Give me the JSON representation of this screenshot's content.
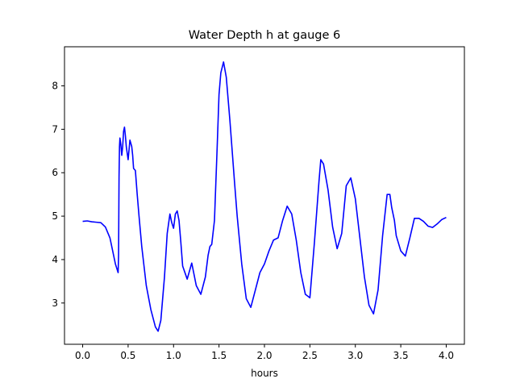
{
  "chart_data": {
    "type": "line",
    "title": "Water Depth h at gauge 6",
    "xlabel": "hours",
    "ylabel": "",
    "xlim": [
      -0.2,
      4.2
    ],
    "ylim": [
      2.05,
      8.9
    ],
    "xticks": [
      0.0,
      0.5,
      1.0,
      1.5,
      2.0,
      2.5,
      3.0,
      3.5,
      4.0
    ],
    "xtick_labels": [
      "0.0",
      "0.5",
      "1.0",
      "1.5",
      "2.0",
      "2.5",
      "3.0",
      "3.5",
      "4.0"
    ],
    "yticks": [
      3,
      4,
      5,
      6,
      7,
      8
    ],
    "ytick_labels": [
      "3",
      "4",
      "5",
      "6",
      "7",
      "8"
    ],
    "grid": false,
    "series": [
      {
        "color": "#0000ff",
        "x": [
          0.0,
          0.05,
          0.1,
          0.15,
          0.2,
          0.25,
          0.3,
          0.33,
          0.36,
          0.39,
          0.395,
          0.4,
          0.405,
          0.41,
          0.42,
          0.43,
          0.44,
          0.45,
          0.46,
          0.47,
          0.48,
          0.49,
          0.5,
          0.52,
          0.54,
          0.55,
          0.56,
          0.58,
          0.6,
          0.62,
          0.65,
          0.7,
          0.75,
          0.8,
          0.83,
          0.86,
          0.9,
          0.93,
          0.96,
          0.98,
          1.0,
          1.02,
          1.04,
          1.06,
          1.08,
          1.1,
          1.15,
          1.2,
          1.25,
          1.3,
          1.35,
          1.38,
          1.4,
          1.42,
          1.45,
          1.48,
          1.5,
          1.52,
          1.55,
          1.58,
          1.62,
          1.67,
          1.7,
          1.75,
          1.8,
          1.85,
          1.9,
          1.95,
          2.0,
          2.05,
          2.1,
          2.15,
          2.2,
          2.25,
          2.3,
          2.35,
          2.4,
          2.45,
          2.5,
          2.55,
          2.6,
          2.62,
          2.65,
          2.7,
          2.75,
          2.8,
          2.85,
          2.9,
          2.95,
          3.0,
          3.05,
          3.1,
          3.15,
          3.2,
          3.25,
          3.3,
          3.35,
          3.38,
          3.4,
          3.43,
          3.45,
          3.5,
          3.55,
          3.6,
          3.65,
          3.7,
          3.75,
          3.8,
          3.85,
          3.9,
          3.95,
          4.0
        ],
        "y": [
          4.88,
          4.89,
          4.87,
          4.86,
          4.85,
          4.75,
          4.5,
          4.2,
          3.9,
          3.7,
          4.1,
          5.9,
          6.6,
          6.8,
          6.65,
          6.4,
          6.6,
          6.95,
          7.05,
          6.85,
          6.6,
          6.45,
          6.3,
          6.75,
          6.6,
          6.4,
          6.1,
          6.05,
          5.5,
          5.0,
          4.3,
          3.4,
          2.85,
          2.45,
          2.35,
          2.6,
          3.6,
          4.6,
          5.05,
          4.85,
          4.72,
          5.05,
          5.12,
          4.9,
          4.4,
          3.85,
          3.55,
          3.92,
          3.4,
          3.2,
          3.6,
          4.1,
          4.3,
          4.35,
          4.9,
          6.6,
          7.8,
          8.3,
          8.55,
          8.2,
          7.2,
          5.8,
          5.0,
          3.9,
          3.1,
          2.9,
          3.3,
          3.7,
          3.9,
          4.2,
          4.45,
          4.5,
          4.9,
          5.23,
          5.05,
          4.45,
          3.7,
          3.2,
          3.12,
          4.4,
          5.8,
          6.3,
          6.2,
          5.6,
          4.75,
          4.25,
          4.6,
          5.7,
          5.88,
          5.4,
          4.5,
          3.6,
          2.95,
          2.75,
          3.3,
          4.55,
          5.5,
          5.5,
          5.2,
          4.9,
          4.55,
          4.2,
          4.08,
          4.5,
          4.95,
          4.95,
          4.88,
          4.77,
          4.74,
          4.82,
          4.92,
          4.97
        ]
      }
    ]
  }
}
